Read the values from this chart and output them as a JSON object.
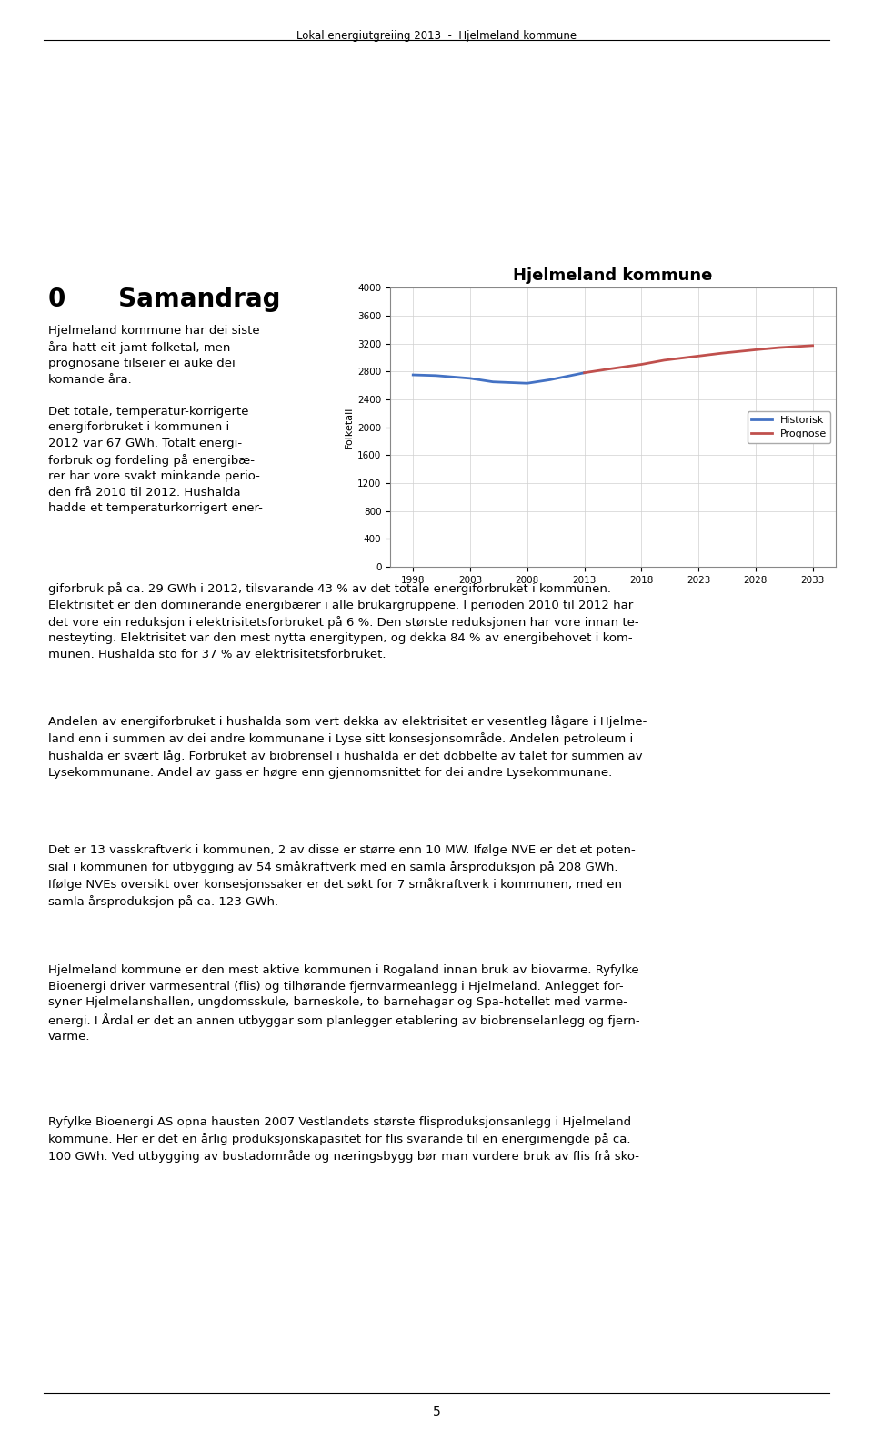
{
  "title": "Hjelmeland kommune",
  "ylabel": "Folketall",
  "ylim": [
    0,
    4000
  ],
  "yticks": [
    0,
    400,
    800,
    1200,
    1600,
    2000,
    2400,
    2800,
    3200,
    3600,
    4000
  ],
  "historisk_x": [
    1998,
    2000,
    2003,
    2005,
    2008,
    2010,
    2013
  ],
  "historisk_y": [
    2750,
    2740,
    2700,
    2650,
    2630,
    2680,
    2780
  ],
  "prognose_x": [
    2013,
    2015,
    2018,
    2020,
    2023,
    2025,
    2028,
    2030,
    2033
  ],
  "prognose_y": [
    2780,
    2830,
    2900,
    2960,
    3020,
    3060,
    3110,
    3140,
    3170
  ],
  "historisk_color": "#4472C4",
  "prognose_color": "#C0504D",
  "xticks": [
    1998,
    2003,
    2008,
    2013,
    2018,
    2023,
    2028,
    2033
  ],
  "legend_historisk": "Historisk",
  "legend_prognose": "Prognose",
  "chart_title_fontsize": 13,
  "axis_label_fontsize": 8,
  "tick_fontsize": 7.5,
  "legend_fontsize": 8,
  "line_width": 2.0,
  "background_color": "#ffffff",
  "grid_color": "#d0d0d0",
  "page_title": "Lokal energiutgreiing 2013  -  Hjelmeland kommune",
  "page_number": "5",
  "heading": "0      Samandrag",
  "left_col_text_lines": [
    "Hjelmeland kommune har dei siste",
    "åra hatt eit jamt folketal, men",
    "prognosane tilseier ei auke dei",
    "komande åra.",
    "",
    "Det totale, temperatur-korrigerte",
    "energiforbruket i kommunen i",
    "2012 var 67 GWh. Totalt energi-",
    "forbruk og fordeling på energibæ-",
    "rer har vore svakt minkande perio-",
    "den frå 2010 til 2012. Hushalda",
    "hadde et temperaturkorrigert ener-"
  ],
  "para1": "giforbruk på ca. 29 GWh i 2012, tilsvarande 43 % av det totale energiforbruket i kommunen. Elektrisitet er den dominerande energibærer i alle brukargruppene. I perioden 2010 til 2012 har det vore ein reduksjon i elektrisitetsforbruket på 6 %. Den største reduksjonen har vore innan tenesteyting. Elektrisitet var den mest nytta energitypen, og dekka 84 % av energibehovet i kommunen. Hushalda sto for 37 % av elektrisitetsforbruket.",
  "para2": "Andelen av energiforbruket i hushalda som vert dekka av elektrisitet er vesentleg lågare i Hjelmeland enn i summen av dei andre kommunane i Lyse sitt konsesjonsområde. Andelen petroleum i hushalda er svært låg. Forbruket av biobrensel i hushalda er det dobbelte av talet for summen av Lysekommunane. Andel av gass er høgre enn gjennomsnittet for dei andre Lysekommunane.",
  "para3": "Det er 13 vasskraftverk i kommunen, 2 av disse er større enn 10 MW. Iflølge NVE er det et potensial i kommunen for utbygging av 54 småkraftverk med en samla årsproduksjon på 208 GWh. Iflølge NVEs oversikt over konsesjonssaker er det søkt for 7 småkraftverk i kommunen, med en samla årsproduksjon på ca. 123 GWh.",
  "para4": "Hjelmeland kommune er den mest aktive kommunen i Rogaland innan bruk av biovarme. Ryfylke Bioenergi driver varmesentral (flis) og tilhørande fjernvarmeanlegg i Hjelmeland. Anlegget forsyner Hjelmelanshallen, ungdomsskule, barneskole, to barnehagar og Spa-hotellet med varmeenergi. I Årdal er det an annen utbyggar som planlegger etablering av biobrenselanlegg og fjernvarme.",
  "para5": "Ryfylke Bioenergi AS opna hausten 2007 Vestlandets største flisproduksjonsanlegg i Hjelmeland kommune. Her er det en årlig produksjonskapasitet for flis svarande til en energimengde på ca. 100 GWh. Ved utbygging av bustadommråde og næringsbygg bør man vurdere bruk av flis frå sko-"
}
